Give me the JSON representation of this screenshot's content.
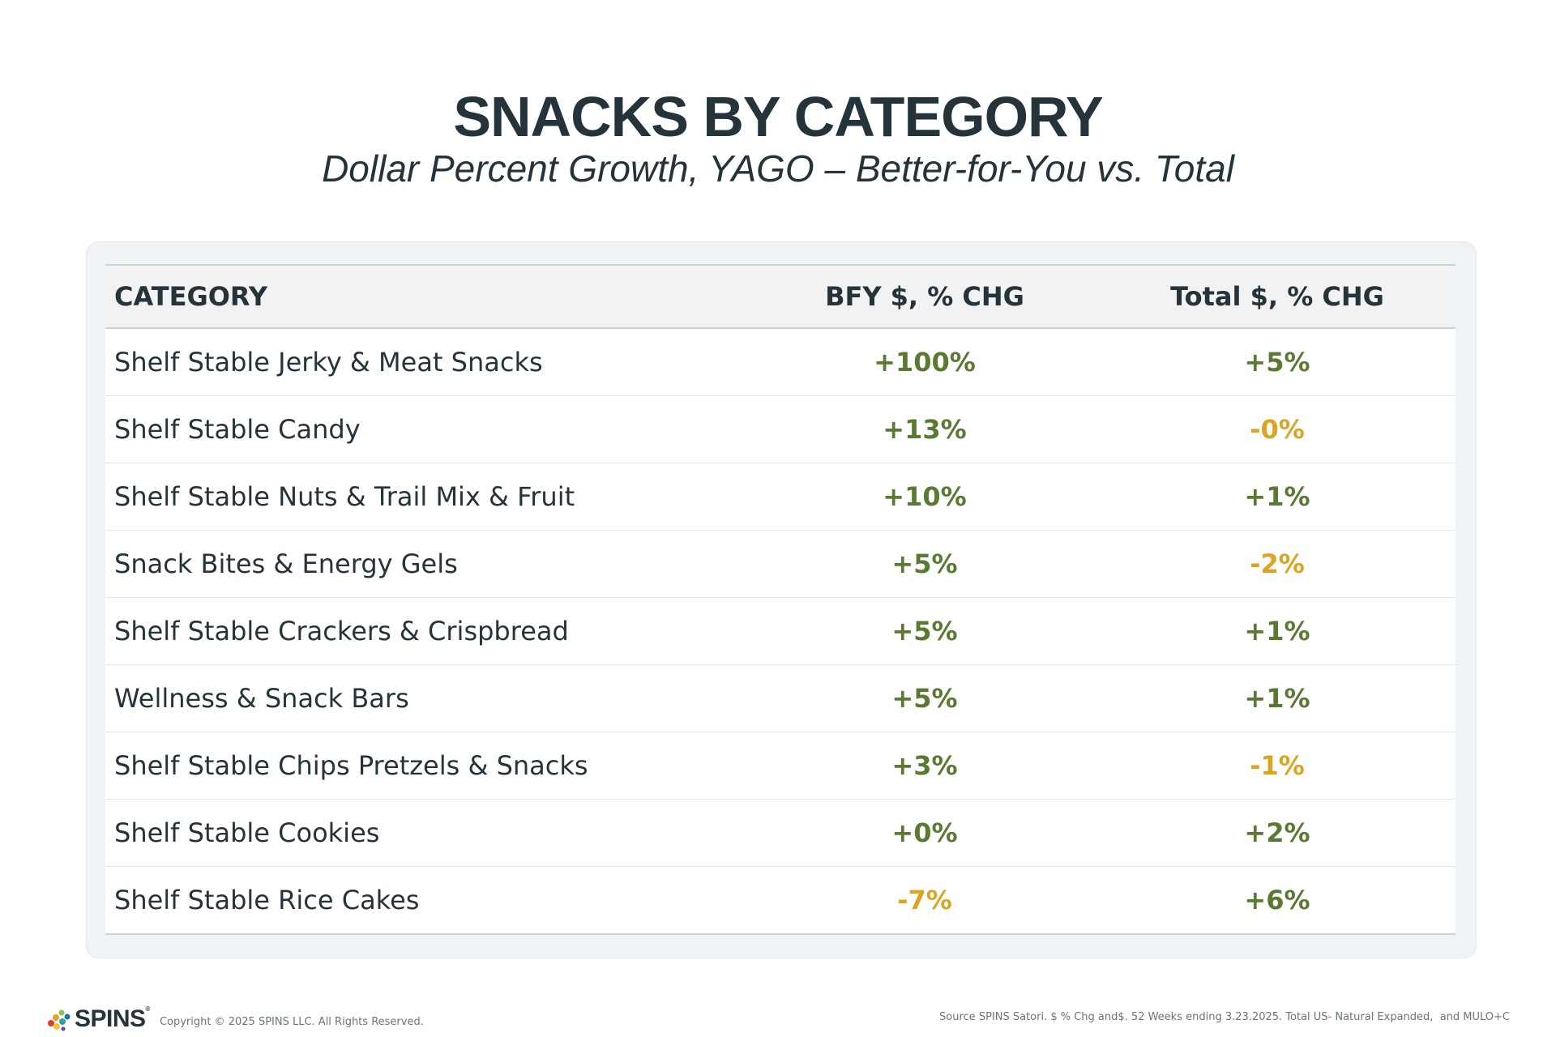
{
  "title": "SNACKS BY CATEGORY",
  "subtitle": "Dollar Percent Growth, YAGO – Better-for-You vs. Total",
  "colors": {
    "positive": "#5a7a34",
    "negative": "#dba521",
    "text": "#25333a"
  },
  "chart_data": {
    "type": "table",
    "title": "SNACKS BY CATEGORY",
    "subtitle": "Dollar Percent Growth, YAGO – Better-for-You vs. Total",
    "columns": [
      "CATEGORY",
      "BFY $, % CHG",
      "Total $, % CHG"
    ],
    "rows": [
      {
        "category": "Shelf Stable Jerky & Meat Snacks",
        "bfy": "+100%",
        "total": "+5%"
      },
      {
        "category": "Shelf Stable Candy",
        "bfy": "+13%",
        "total": "-0%"
      },
      {
        "category": "Shelf Stable Nuts & Trail Mix & Fruit",
        "bfy": "+10%",
        "total": "+1%"
      },
      {
        "category": "Snack Bites & Energy Gels",
        "bfy": "+5%",
        "total": "-2%"
      },
      {
        "category": "Shelf Stable Crackers & Crispbread",
        "bfy": "+5%",
        "total": "+1%"
      },
      {
        "category": "Wellness & Snack Bars",
        "bfy": "+5%",
        "total": "+1%"
      },
      {
        "category": "Shelf Stable Chips Pretzels & Snacks",
        "bfy": "+3%",
        "total": "-1%"
      },
      {
        "category": "Shelf Stable Cookies",
        "bfy": "+0%",
        "total": "+2%"
      },
      {
        "category": "Shelf Stable Rice Cakes",
        "bfy": "-7%",
        "total": "+6%"
      }
    ]
  },
  "footer": {
    "logo_text": "SPINS",
    "logo_mark": "®",
    "copyright": "Copyright © 2025 SPINS LLC. All Rights Reserved.",
    "source": "Source SPINS Satori. $ % Chg and$. 52 Weeks ending 3.23.2025. Total US- Natural Expanded,  and MULO+C"
  }
}
